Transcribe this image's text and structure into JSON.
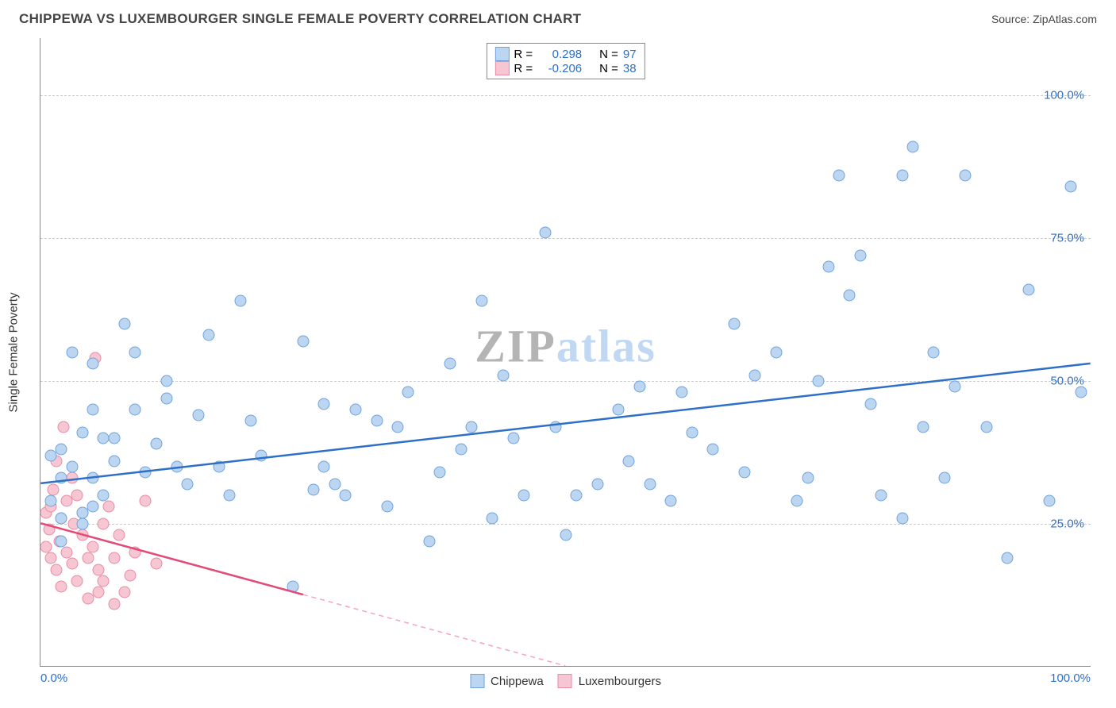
{
  "title": "CHIPPEWA VS LUXEMBOURGER SINGLE FEMALE POVERTY CORRELATION CHART",
  "source_label": "Source:",
  "source_name": "ZipAtlas.com",
  "y_axis_title": "Single Female Poverty",
  "watermark": {
    "zip": "ZIP",
    "atlas": "atlas"
  },
  "chart": {
    "xlim": [
      0,
      100
    ],
    "ylim": [
      0,
      110
    ],
    "grid_lines": [
      25,
      50,
      75,
      100
    ],
    "grid_color": "#cccccc",
    "y_labels": [
      {
        "value": 25,
        "text": "25.0%",
        "color": "#2e6fc7"
      },
      {
        "value": 50,
        "text": "50.0%",
        "color": "#2e6fc7"
      },
      {
        "value": 75,
        "text": "75.0%",
        "color": "#2e6fc7"
      },
      {
        "value": 100,
        "text": "100.0%",
        "color": "#2e6fc7"
      }
    ],
    "x_labels": [
      {
        "value": 0,
        "text": "0.0%",
        "color": "#2e6fc7",
        "align": "left"
      },
      {
        "value": 100,
        "text": "100.0%",
        "color": "#2e6fc7",
        "align": "right"
      }
    ],
    "series": [
      {
        "name": "Chippewa",
        "marker_fill": "#bcd5f0",
        "marker_stroke": "#6fa3dc",
        "line_color": "#2e6fc7",
        "dashed_color": "#2e6fc7",
        "r_label": "R =",
        "n_label": "N =",
        "r_value": "0.298",
        "n_value": "97",
        "trend": {
          "x1": 0,
          "y1": 32,
          "x2": 100,
          "y2": 53,
          "solid_until_x": 100
        },
        "points": [
          [
            1,
            29
          ],
          [
            1,
            37
          ],
          [
            2,
            22
          ],
          [
            2,
            38
          ],
          [
            2,
            26
          ],
          [
            2,
            33
          ],
          [
            3,
            55
          ],
          [
            3,
            35
          ],
          [
            4,
            27
          ],
          [
            4,
            25
          ],
          [
            4,
            41
          ],
          [
            5,
            45
          ],
          [
            5,
            28
          ],
          [
            5,
            33
          ],
          [
            5,
            53
          ],
          [
            6,
            40
          ],
          [
            6,
            30
          ],
          [
            7,
            36
          ],
          [
            7,
            40
          ],
          [
            8,
            60
          ],
          [
            9,
            55
          ],
          [
            9,
            45
          ],
          [
            10,
            34
          ],
          [
            11,
            39
          ],
          [
            12,
            47
          ],
          [
            12,
            50
          ],
          [
            13,
            35
          ],
          [
            14,
            32
          ],
          [
            15,
            44
          ],
          [
            16,
            58
          ],
          [
            17,
            35
          ],
          [
            18,
            30
          ],
          [
            19,
            64
          ],
          [
            20,
            43
          ],
          [
            21,
            37
          ],
          [
            24,
            14
          ],
          [
            25,
            57
          ],
          [
            26,
            31
          ],
          [
            27,
            46
          ],
          [
            27,
            35
          ],
          [
            28,
            32
          ],
          [
            29,
            30
          ],
          [
            30,
            45
          ],
          [
            32,
            43
          ],
          [
            33,
            28
          ],
          [
            34,
            42
          ],
          [
            35,
            48
          ],
          [
            37,
            22
          ],
          [
            38,
            34
          ],
          [
            39,
            53
          ],
          [
            40,
            38
          ],
          [
            41,
            42
          ],
          [
            42,
            64
          ],
          [
            43,
            26
          ],
          [
            44,
            51
          ],
          [
            45,
            40
          ],
          [
            46,
            30
          ],
          [
            48,
            76
          ],
          [
            49,
            42
          ],
          [
            50,
            23
          ],
          [
            51,
            30
          ],
          [
            53,
            32
          ],
          [
            55,
            45
          ],
          [
            56,
            36
          ],
          [
            57,
            49
          ],
          [
            58,
            32
          ],
          [
            60,
            29
          ],
          [
            61,
            48
          ],
          [
            62,
            41
          ],
          [
            64,
            38
          ],
          [
            66,
            60
          ],
          [
            67,
            34
          ],
          [
            68,
            51
          ],
          [
            70,
            55
          ],
          [
            72,
            29
          ],
          [
            73,
            33
          ],
          [
            74,
            50
          ],
          [
            75,
            70
          ],
          [
            76,
            86
          ],
          [
            77,
            65
          ],
          [
            78,
            72
          ],
          [
            79,
            46
          ],
          [
            80,
            30
          ],
          [
            82,
            26
          ],
          [
            82,
            86
          ],
          [
            83,
            91
          ],
          [
            84,
            42
          ],
          [
            85,
            55
          ],
          [
            86,
            33
          ],
          [
            87,
            49
          ],
          [
            88,
            86
          ],
          [
            90,
            42
          ],
          [
            92,
            19
          ],
          [
            94,
            66
          ],
          [
            96,
            29
          ],
          [
            98,
            84
          ],
          [
            99,
            48
          ]
        ]
      },
      {
        "name": "Luxembourgers",
        "marker_fill": "#f6c6d3",
        "marker_stroke": "#e98ba5",
        "line_color": "#e24a78",
        "dashed_color": "#f2a5bc",
        "r_label": "R =",
        "n_label": "N =",
        "r_value": "-0.206",
        "n_value": "38",
        "trend": {
          "x1": 0,
          "y1": 25,
          "x2": 50,
          "y2": 0,
          "solid_until_x": 25
        },
        "points": [
          [
            0.5,
            27
          ],
          [
            0.5,
            21
          ],
          [
            0.8,
            24
          ],
          [
            1,
            19
          ],
          [
            1,
            28
          ],
          [
            1.2,
            31
          ],
          [
            1.5,
            17
          ],
          [
            1.5,
            36
          ],
          [
            1.8,
            22
          ],
          [
            2,
            26
          ],
          [
            2,
            14
          ],
          [
            2.2,
            42
          ],
          [
            2.5,
            29
          ],
          [
            2.5,
            20
          ],
          [
            3,
            18
          ],
          [
            3,
            33
          ],
          [
            3.2,
            25
          ],
          [
            3.5,
            15
          ],
          [
            3.5,
            30
          ],
          [
            4,
            23
          ],
          [
            4,
            27
          ],
          [
            4.5,
            12
          ],
          [
            4.5,
            19
          ],
          [
            5,
            21
          ],
          [
            5.2,
            54
          ],
          [
            5.5,
            13
          ],
          [
            5.5,
            17
          ],
          [
            6,
            25
          ],
          [
            6,
            15
          ],
          [
            6.5,
            28
          ],
          [
            7,
            11
          ],
          [
            7,
            19
          ],
          [
            7.5,
            23
          ],
          [
            8,
            13
          ],
          [
            8.5,
            16
          ],
          [
            9,
            20
          ],
          [
            10,
            29
          ],
          [
            11,
            18
          ]
        ]
      }
    ]
  }
}
